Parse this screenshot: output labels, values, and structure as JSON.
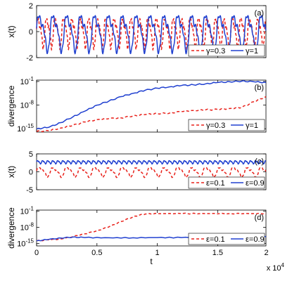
{
  "chart_data": [
    {
      "panel_label": "(a)",
      "type": "line",
      "xlabel": "",
      "ylabel": "x(t)",
      "xlim": [
        0,
        19000
      ],
      "ylim": [
        -2,
        2
      ],
      "yticks": [
        {
          "value": -2,
          "label": "-2"
        },
        {
          "value": 0,
          "label": "0"
        },
        {
          "value": 2,
          "label": "2"
        }
      ],
      "grid": false,
      "legend_position": "bottom-right",
      "series": [
        {
          "name": "γ=0.3",
          "color": "#e8201a",
          "dash": "4,3",
          "period": 700,
          "amplitude": 1.3,
          "offset": 0
        },
        {
          "name": "γ=1",
          "color": "#2040d0",
          "dash": "",
          "period": 1150,
          "amplitude": 1.6,
          "offset": 0
        }
      ]
    },
    {
      "panel_label": "(b)",
      "type": "line",
      "xlabel": "",
      "ylabel": "divergence",
      "xlim": [
        0,
        19000
      ],
      "ylim_log10": [
        -16,
        -0.6
      ],
      "yscale": "log",
      "yticks": [
        {
          "value": -15,
          "base": "10",
          "exp": "-15"
        },
        {
          "value": -8,
          "base": "10",
          "exp": "-8"
        },
        {
          "value": -1,
          "base": "10",
          "exp": "-1"
        }
      ],
      "grid": false,
      "legend_position": "bottom-right",
      "series": [
        {
          "name": "γ=0.3",
          "color": "#e8201a",
          "dash": "4,3",
          "x": [
            0,
            1000,
            2000,
            3000,
            4000,
            5000,
            6000,
            7000,
            8000,
            9000,
            10000,
            11000,
            12000,
            13000,
            14000,
            15000,
            16000,
            17000,
            18000,
            19000
          ],
          "log10_y": [
            -15.8,
            -15.6,
            -14.8,
            -14.0,
            -13.0,
            -12.3,
            -12.0,
            -11.8,
            -11.2,
            -10.8,
            -10.5,
            -10.4,
            -9.9,
            -9.6,
            -9.4,
            -9.3,
            -9.0,
            -8.7,
            -7.0,
            -5.5
          ]
        },
        {
          "name": "γ=1",
          "color": "#2040d0",
          "dash": "",
          "x": [
            0,
            1000,
            2000,
            3000,
            4000,
            5000,
            6000,
            7000,
            8000,
            9000,
            10000,
            11000,
            12000,
            13000,
            14000,
            15000,
            16000,
            17000,
            18000,
            19000
          ],
          "log10_y": [
            -15.0,
            -14.6,
            -13.2,
            -11.5,
            -9.8,
            -8.0,
            -6.8,
            -5.5,
            -4.5,
            -3.6,
            -3.0,
            -2.6,
            -2.2,
            -2.0,
            -1.7,
            -1.3,
            -1.1,
            -0.9,
            -1.1,
            -1.3
          ]
        }
      ]
    },
    {
      "panel_label": "(c)",
      "type": "line",
      "xlabel": "",
      "ylabel": "x(t)",
      "xlim": [
        0,
        19000
      ],
      "ylim": [
        -5,
        5
      ],
      "yticks": [
        {
          "value": -5,
          "label": "-5"
        },
        {
          "value": 0,
          "label": "0"
        },
        {
          "value": 5,
          "label": "5"
        }
      ],
      "grid": false,
      "legend_position": "bottom-right",
      "series": [
        {
          "name": "ε=0.1",
          "color": "#e8201a",
          "dash": "4,3",
          "period": 1150,
          "amplitude": 1.5,
          "offset": 0
        },
        {
          "name": "ε=0.9",
          "color": "#2040d0",
          "dash": "",
          "period": 420,
          "amplitude": 0.5,
          "offset": 2.7
        }
      ]
    },
    {
      "panel_label": "(d)",
      "type": "line",
      "xlabel": "t",
      "ylabel": "divergence",
      "xlim": [
        0,
        19000
      ],
      "ylim_log10": [
        -16,
        -0.6
      ],
      "yscale": "log",
      "yticks": [
        {
          "value": -15,
          "base": "10",
          "exp": "-15"
        },
        {
          "value": -8,
          "base": "10",
          "exp": "-8"
        },
        {
          "value": -1,
          "base": "10",
          "exp": "-1"
        }
      ],
      "xticks": [
        {
          "value": 0,
          "label": "0"
        },
        {
          "value": 5000,
          "label": "0.5"
        },
        {
          "value": 10000,
          "label": "1"
        },
        {
          "value": 15000,
          "label": "1.5"
        },
        {
          "value": 20000,
          "label": "2"
        }
      ],
      "x_scale_factor": {
        "base": "x 10",
        "exp": "4"
      },
      "grid": false,
      "legend_position": "bottom-right",
      "series": [
        {
          "name": "ε=0.1",
          "color": "#e8201a",
          "dash": "4,3",
          "x": [
            0,
            1000,
            2000,
            3000,
            4000,
            5000,
            6000,
            7000,
            8000,
            8500,
            9000,
            10000,
            12000,
            14000,
            16000,
            18000,
            19000
          ],
          "log10_y": [
            -13.8,
            -13.4,
            -13.0,
            -12.0,
            -10.8,
            -9.5,
            -7.8,
            -5.5,
            -3.5,
            -2.8,
            -2.3,
            -2.1,
            -2.1,
            -2.1,
            -2.1,
            -2.1,
            -2.1
          ]
        },
        {
          "name": "ε=0.9",
          "color": "#2040d0",
          "dash": "",
          "x": [
            0,
            1000,
            2000,
            3000,
            4000,
            6000,
            8000,
            10000,
            12000,
            14000,
            16000,
            18000,
            19000
          ],
          "log10_y": [
            -13.8,
            -13.2,
            -12.6,
            -12.2,
            -12.4,
            -12.5,
            -12.5,
            -12.4,
            -12.4,
            -12.2,
            -12.1,
            -12.0,
            -12.0
          ]
        }
      ]
    }
  ]
}
